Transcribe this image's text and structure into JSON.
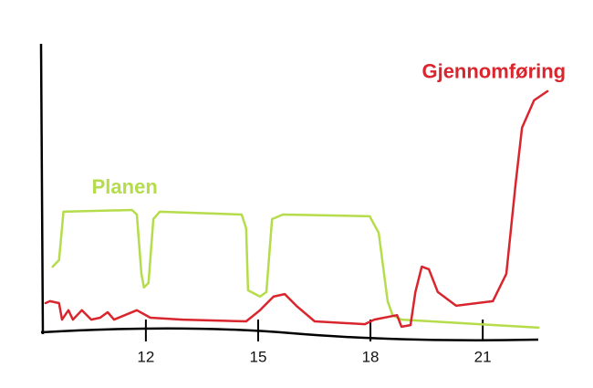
{
  "chart_data": {
    "type": "line",
    "x_ticks_note_free": null,
    "xlim": [
      9.2,
      22.8
    ],
    "ylim": [
      0,
      100
    ],
    "xticks": [
      12,
      15,
      18,
      21
    ],
    "series": [
      {
        "name": "Planen",
        "color": "#b5dc4a",
        "x": [
          9.51,
          9.68,
          9.8,
          11.63,
          11.76,
          11.88,
          11.95,
          12.07,
          12.2,
          12.37,
          14.56,
          14.68,
          14.73,
          15.05,
          15.22,
          15.37,
          15.66,
          17.98,
          18.22,
          18.46,
          18.59,
          18.83,
          22.49
        ],
        "values": [
          22.4,
          24.7,
          41.7,
          42.3,
          40.7,
          19.9,
          15.1,
          16.7,
          39.1,
          41.7,
          40.7,
          35.9,
          14.1,
          11.9,
          13.5,
          39.1,
          40.7,
          40.1,
          34.3,
          10.3,
          5.4,
          3.8,
          1
        ]
      },
      {
        "name": "Gjennomføring",
        "color": "#d9262e",
        "x": [
          9.32,
          9.44,
          9.68,
          9.76,
          9.93,
          10.05,
          10.29,
          10.54,
          10.78,
          10.98,
          11.15,
          11.76,
          12.12,
          12.98,
          14.68,
          15.05,
          15.41,
          15.71,
          16.02,
          16.51,
          17.85,
          18.1,
          18.71,
          18.83,
          19.07,
          19.2,
          19.37,
          19.56,
          19.8,
          20.29,
          21.27,
          21.63,
          21.88,
          22.05,
          22.37,
          22.73
        ],
        "values": [
          9.6,
          10.3,
          9.6,
          3.8,
          7.1,
          3.8,
          7.1,
          3.8,
          4.5,
          6.4,
          3.8,
          7.1,
          4.5,
          3.8,
          3.2,
          7.1,
          11.9,
          12.8,
          8.7,
          3.2,
          2.2,
          3.8,
          5.4,
          1.3,
          1.9,
          13.5,
          22.4,
          21.5,
          13.5,
          8.7,
          10.3,
          19.9,
          51.9,
          71.2,
          80.8,
          84
        ]
      }
    ]
  }
}
